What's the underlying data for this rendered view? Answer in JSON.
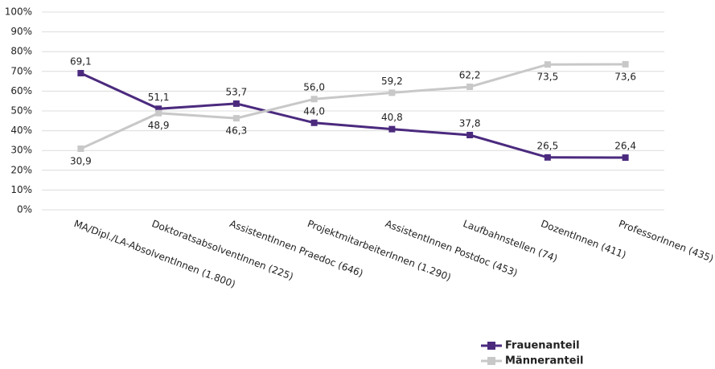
{
  "chart_data": {
    "type": "line",
    "categories": [
      "MA/Dipl./LA-AbsolventInnen (1.800)",
      "DoktoratsabsolventInnen (225)",
      "AssistentInnen Praedoc (646)",
      "ProjektmitarbeiterInnen (1.290)",
      "AssistentInnen Postdoc (453)",
      "Laufbahnstellen (74)",
      "DozentInnen (411)",
      "ProfessorInnen (435)"
    ],
    "series": [
      {
        "name": "Frauenanteil",
        "color": "#4b2a7e",
        "values": [
          69.1,
          51.1,
          53.7,
          44.0,
          40.8,
          37.8,
          26.5,
          26.4
        ],
        "value_labels": [
          "69,1",
          "51,1",
          "53,7",
          "44,0",
          "40,8",
          "37,8",
          "26,5",
          "26,4"
        ]
      },
      {
        "name": "Männeranteil",
        "color": "#c8c8c8",
        "values": [
          30.9,
          48.9,
          46.3,
          56.0,
          59.2,
          62.2,
          73.5,
          73.6
        ],
        "value_labels": [
          "30,9",
          "48,9",
          "46,3",
          "56,0",
          "59,2",
          "62,2",
          "73,5",
          "73,6"
        ]
      }
    ],
    "ylim": [
      0,
      100
    ],
    "yticks": [
      {
        "value": 0,
        "label": "0%"
      },
      {
        "value": 10,
        "label": "10%"
      },
      {
        "value": 20,
        "label": "20%"
      },
      {
        "value": 30,
        "label": "30%"
      },
      {
        "value": 40,
        "label": "40%"
      },
      {
        "value": 50,
        "label": "50%"
      },
      {
        "value": 60,
        "label": "60%"
      },
      {
        "value": 70,
        "label": "70%"
      },
      {
        "value": 80,
        "label": "80%"
      },
      {
        "value": 90,
        "label": "90%"
      },
      {
        "value": 100,
        "label": "100%"
      }
    ],
    "grid": true,
    "legend": "bottom-right"
  }
}
